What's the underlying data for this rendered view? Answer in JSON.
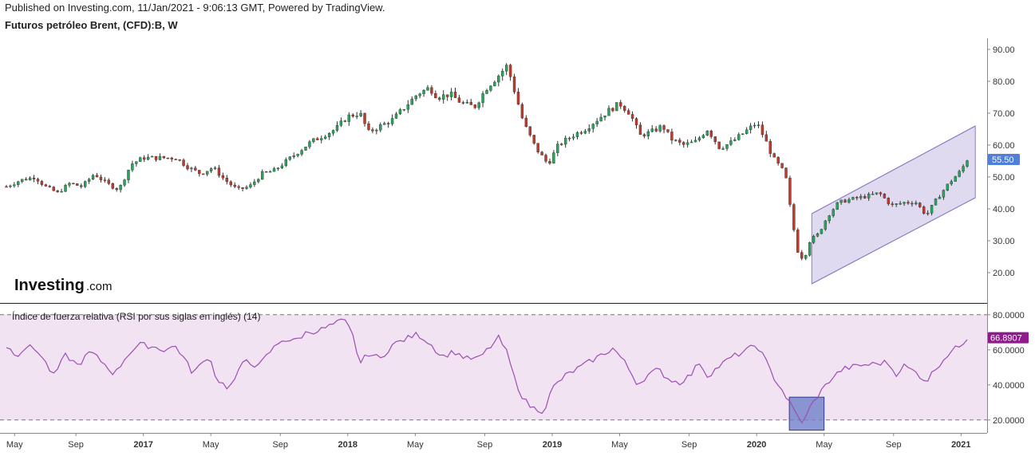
{
  "header": {
    "published": "Published on Investing.com, 11/Jan/2021 - 9:06:13 GMT, Powered by TradingView.",
    "title": "Futuros petróleo Brent, (CFD):B, W"
  },
  "logo": {
    "main": "Investing",
    "suffix": ".com"
  },
  "colors": {
    "up": "#26a65b",
    "down": "#c0392b",
    "wick": "#333333",
    "channel_fill": "#d9d3ec",
    "channel_line": "#8e7cc3",
    "rsi_line": "#9b4fb3",
    "rsi_band": "#f1e3f1",
    "price_label_bg": "#4f7fd6",
    "rsi_label_bg": "#8e1a8e",
    "highlight_box": "#6f7fc9"
  },
  "chart_data": [
    {
      "type": "candlestick",
      "title": "Futuros petróleo Brent, (CFD):B, W",
      "ylim": [
        13,
        93
      ],
      "y_ticks": [
        "20.00",
        "30.00",
        "40.00",
        "50.00",
        "60.00",
        "70.00",
        "80.00",
        "90.00"
      ],
      "x_ticks": [
        {
          "label": "May",
          "x": 2016.37,
          "bold": false
        },
        {
          "label": "Sep",
          "x": 2016.67,
          "bold": false
        },
        {
          "label": "2017",
          "x": 2017.0,
          "bold": true
        },
        {
          "label": "May",
          "x": 2017.33,
          "bold": false
        },
        {
          "label": "Sep",
          "x": 2017.67,
          "bold": false
        },
        {
          "label": "2018",
          "x": 2018.0,
          "bold": true
        },
        {
          "label": "May",
          "x": 2018.33,
          "bold": false
        },
        {
          "label": "Sep",
          "x": 2018.67,
          "bold": false
        },
        {
          "label": "2019",
          "x": 2019.0,
          "bold": true
        },
        {
          "label": "May",
          "x": 2019.33,
          "bold": false
        },
        {
          "label": "Sep",
          "x": 2019.67,
          "bold": false
        },
        {
          "label": "2020",
          "x": 2020.0,
          "bold": true
        },
        {
          "label": "May",
          "x": 2020.33,
          "bold": false
        },
        {
          "label": "Sep",
          "x": 2020.67,
          "bold": false
        },
        {
          "label": "2021",
          "x": 2021.0,
          "bold": true
        }
      ],
      "last_price": "55.50",
      "price_path": [
        [
          2016.33,
          47
        ],
        [
          2016.4,
          49
        ],
        [
          2016.47,
          50
        ],
        [
          2016.52,
          47
        ],
        [
          2016.58,
          45
        ],
        [
          2016.64,
          48
        ],
        [
          2016.7,
          47
        ],
        [
          2016.76,
          51
        ],
        [
          2016.82,
          48
        ],
        [
          2016.88,
          46
        ],
        [
          2016.94,
          54
        ],
        [
          2017.0,
          56
        ],
        [
          2017.08,
          56
        ],
        [
          2017.16,
          56
        ],
        [
          2017.22,
          53
        ],
        [
          2017.28,
          51
        ],
        [
          2017.34,
          53
        ],
        [
          2017.4,
          49
        ],
        [
          2017.46,
          46
        ],
        [
          2017.52,
          47
        ],
        [
          2017.58,
          51
        ],
        [
          2017.64,
          52
        ],
        [
          2017.7,
          55
        ],
        [
          2017.76,
          58
        ],
        [
          2017.82,
          61
        ],
        [
          2017.88,
          63
        ],
        [
          2017.94,
          65
        ],
        [
          2018.0,
          69
        ],
        [
          2018.06,
          70
        ],
        [
          2018.1,
          64
        ],
        [
          2018.16,
          66
        ],
        [
          2018.22,
          68
        ],
        [
          2018.28,
          72
        ],
        [
          2018.34,
          76
        ],
        [
          2018.4,
          78
        ],
        [
          2018.44,
          75
        ],
        [
          2018.5,
          76
        ],
        [
          2018.56,
          73
        ],
        [
          2018.62,
          72
        ],
        [
          2018.68,
          78
        ],
        [
          2018.74,
          82
        ],
        [
          2018.78,
          85
        ],
        [
          2018.82,
          76
        ],
        [
          2018.86,
          67
        ],
        [
          2018.92,
          59
        ],
        [
          2018.98,
          54
        ],
        [
          2019.03,
          60
        ],
        [
          2019.1,
          63
        ],
        [
          2019.16,
          65
        ],
        [
          2019.22,
          68
        ],
        [
          2019.28,
          71
        ],
        [
          2019.33,
          73
        ],
        [
          2019.38,
          70
        ],
        [
          2019.43,
          63
        ],
        [
          2019.48,
          64
        ],
        [
          2019.54,
          66
        ],
        [
          2019.58,
          62
        ],
        [
          2019.64,
          60
        ],
        [
          2019.7,
          61
        ],
        [
          2019.76,
          65
        ],
        [
          2019.82,
          59
        ],
        [
          2019.88,
          61
        ],
        [
          2019.94,
          64
        ],
        [
          2020.0,
          67
        ],
        [
          2020.04,
          62
        ],
        [
          2020.08,
          56
        ],
        [
          2020.14,
          51
        ],
        [
          2020.17,
          38
        ],
        [
          2020.2,
          27
        ],
        [
          2020.23,
          24
        ],
        [
          2020.26,
          30
        ],
        [
          2020.3,
          32
        ],
        [
          2020.35,
          38
        ],
        [
          2020.4,
          42
        ],
        [
          2020.46,
          43
        ],
        [
          2020.54,
          44
        ],
        [
          2020.6,
          45
        ],
        [
          2020.66,
          41
        ],
        [
          2020.72,
          42
        ],
        [
          2020.78,
          42
        ],
        [
          2020.83,
          38
        ],
        [
          2020.88,
          43
        ],
        [
          2020.94,
          48
        ],
        [
          2021.0,
          52
        ],
        [
          2021.03,
          55.5
        ]
      ],
      "channel": {
        "lower": [
          [
            2020.27,
            16.5
          ],
          [
            2021.07,
            43.5
          ]
        ],
        "upper": [
          [
            2020.27,
            38.5
          ],
          [
            2021.07,
            66
          ]
        ]
      }
    },
    {
      "type": "line",
      "title": "Índice de fuerza relativa (RSI por sus siglas en inglés) (14)",
      "ylim": [
        14,
        84
      ],
      "y_ticks": [
        "20.0000",
        "40.0000",
        "60.0000",
        "80.0000"
      ],
      "band": [
        20,
        80
      ],
      "last_value": "66.8907",
      "rsi_path": [
        [
          2016.33,
          62
        ],
        [
          2016.38,
          57
        ],
        [
          2016.43,
          62
        ],
        [
          2016.48,
          60
        ],
        [
          2016.52,
          53
        ],
        [
          2016.56,
          45
        ],
        [
          2016.62,
          57
        ],
        [
          2016.68,
          51
        ],
        [
          2016.74,
          59
        ],
        [
          2016.8,
          53
        ],
        [
          2016.86,
          46
        ],
        [
          2016.92,
          57
        ],
        [
          2016.98,
          63
        ],
        [
          2017.04,
          62
        ],
        [
          2017.1,
          60
        ],
        [
          2017.16,
          62
        ],
        [
          2017.2,
          55
        ],
        [
          2017.24,
          47
        ],
        [
          2017.28,
          51
        ],
        [
          2017.32,
          57
        ],
        [
          2017.36,
          43
        ],
        [
          2017.42,
          38
        ],
        [
          2017.46,
          46
        ],
        [
          2017.5,
          55
        ],
        [
          2017.56,
          50
        ],
        [
          2017.62,
          59
        ],
        [
          2017.68,
          66
        ],
        [
          2017.74,
          65
        ],
        [
          2017.8,
          70
        ],
        [
          2017.86,
          71
        ],
        [
          2017.92,
          74
        ],
        [
          2017.98,
          77
        ],
        [
          2018.02,
          70
        ],
        [
          2018.06,
          52
        ],
        [
          2018.1,
          58
        ],
        [
          2018.16,
          55
        ],
        [
          2018.22,
          63
        ],
        [
          2018.28,
          66
        ],
        [
          2018.34,
          69
        ],
        [
          2018.4,
          64
        ],
        [
          2018.46,
          56
        ],
        [
          2018.52,
          59
        ],
        [
          2018.58,
          55
        ],
        [
          2018.64,
          55
        ],
        [
          2018.7,
          62
        ],
        [
          2018.74,
          67
        ],
        [
          2018.78,
          58
        ],
        [
          2018.82,
          42
        ],
        [
          2018.86,
          32
        ],
        [
          2018.9,
          27
        ],
        [
          2018.96,
          25
        ],
        [
          2019.0,
          38
        ],
        [
          2019.06,
          45
        ],
        [
          2019.12,
          49
        ],
        [
          2019.18,
          53
        ],
        [
          2019.24,
          57
        ],
        [
          2019.3,
          61
        ],
        [
          2019.36,
          52
        ],
        [
          2019.42,
          40
        ],
        [
          2019.46,
          45
        ],
        [
          2019.52,
          49
        ],
        [
          2019.56,
          44
        ],
        [
          2019.62,
          41
        ],
        [
          2019.68,
          46
        ],
        [
          2019.72,
          53
        ],
        [
          2019.76,
          45
        ],
        [
          2019.82,
          51
        ],
        [
          2019.88,
          56
        ],
        [
          2019.94,
          59
        ],
        [
          2020.0,
          63
        ],
        [
          2020.04,
          55
        ],
        [
          2020.08,
          45
        ],
        [
          2020.12,
          38
        ],
        [
          2020.16,
          30
        ],
        [
          2020.2,
          22
        ],
        [
          2020.23,
          18
        ],
        [
          2020.26,
          27
        ],
        [
          2020.3,
          34
        ],
        [
          2020.36,
          43
        ],
        [
          2020.42,
          49
        ],
        [
          2020.5,
          51
        ],
        [
          2020.58,
          52
        ],
        [
          2020.64,
          53
        ],
        [
          2020.68,
          46
        ],
        [
          2020.72,
          51
        ],
        [
          2020.78,
          47
        ],
        [
          2020.83,
          42
        ],
        [
          2020.88,
          50
        ],
        [
          2020.94,
          58
        ],
        [
          2021.0,
          63
        ],
        [
          2021.03,
          66.9
        ]
      ]
    }
  ]
}
